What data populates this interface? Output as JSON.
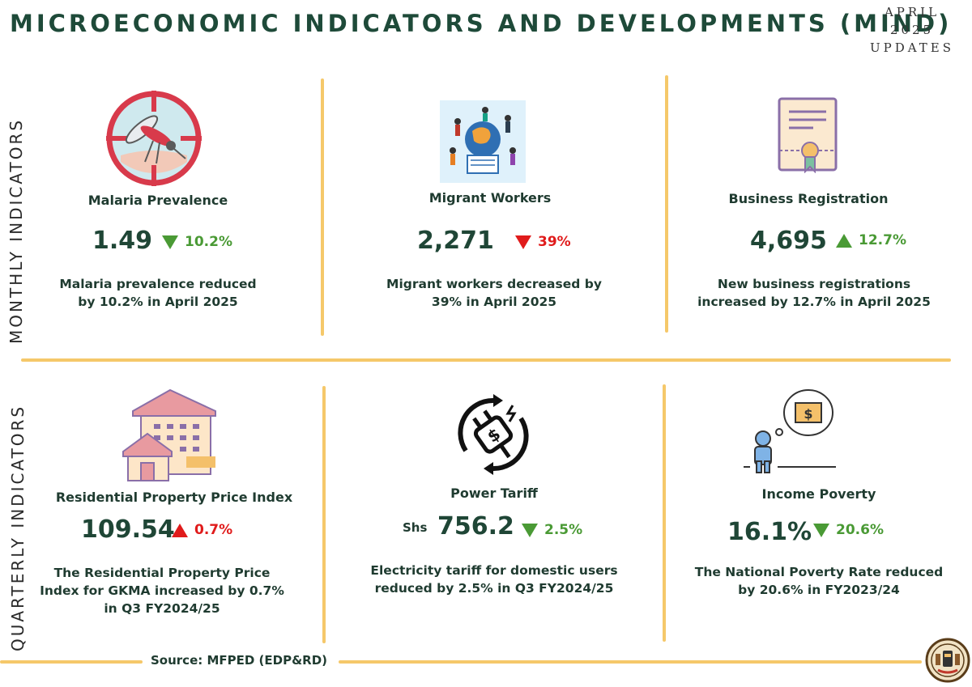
{
  "header": {
    "title": "MICROECONOMIC INDICATORS AND DEVELOPMENTS (MIND)",
    "date_lines": [
      "APRIL",
      "2025",
      "UPDATES"
    ]
  },
  "sections": {
    "monthly_label": "MONTHLY INDICATORS",
    "quarterly_label": "QUARTERLY INDICATORS"
  },
  "colors": {
    "title": "#1e4a39",
    "divider": "#f5c86a",
    "increase_green": "#4a9a35",
    "decrease_red": "#e01b1b"
  },
  "monthly": [
    {
      "icon": "malaria-mosquito-icon",
      "label": "Malaria Prevalence",
      "value": "1.49",
      "change": "10.2%",
      "direction": "down",
      "color": "green",
      "desc1": "Malaria prevalence reduced",
      "desc2": "by 10.2% in April 2025"
    },
    {
      "icon": "migrant-workers-globe-icon",
      "label": "Migrant Workers",
      "value": "2,271",
      "change": "39%",
      "direction": "down",
      "color": "red",
      "desc1": "Migrant workers  decreased by",
      "desc2": "39% in April 2025"
    },
    {
      "icon": "certificate-icon",
      "label": "Business Registration",
      "value": "4,695",
      "change": "12.7%",
      "direction": "up",
      "color": "green",
      "desc1": "New business registrations",
      "desc2": "increased by 12.7% in April 2025"
    }
  ],
  "quarterly": [
    {
      "icon": "residential-building-icon",
      "label": "Residential Property Price Index",
      "value": "109.54",
      "change": "0.7%",
      "direction": "up",
      "color": "red",
      "desc1": "The Residential Property Price",
      "desc2": "Index for GKMA increased by 0.7%",
      "desc3": "in Q3 FY2024/25"
    },
    {
      "icon": "power-plug-dollar-icon",
      "label": "Power Tariff",
      "unit": "Shs",
      "value": "756.2",
      "change": "2.5%",
      "direction": "down",
      "color": "green",
      "desc1": "Electricity tariff for domestic users",
      "desc2": "reduced by 2.5% in Q3 FY2024/25"
    },
    {
      "icon": "income-poverty-person-icon",
      "label": "Income Poverty",
      "value": "16.1%",
      "change": "20.6%",
      "direction": "down",
      "color": "green",
      "desc1": "The National Poverty Rate reduced",
      "desc2": "by 20.6% in FY2023/24"
    }
  ],
  "footer": {
    "source": "Source: MFPED (EDP&RD)",
    "emblem_icon": "uganda-coat-of-arms-icon"
  }
}
